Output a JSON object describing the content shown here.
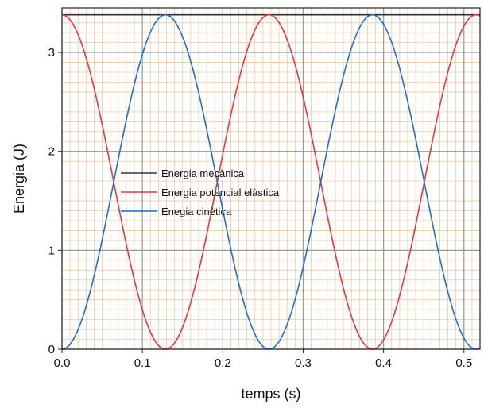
{
  "chart_data": {
    "type": "line",
    "xlabel": "temps (s)",
    "ylabel": "Energia (J)",
    "xlim": [
      0,
      0.52
    ],
    "ylim": [
      0,
      3.45
    ],
    "x_ticks": [
      0.0,
      0.1,
      0.2,
      0.3,
      0.4,
      0.5
    ],
    "x_tick_labels": [
      "0.0",
      "0.1",
      "0.2",
      "0.3",
      "0.4",
      "0.5"
    ],
    "y_ticks": [
      0,
      1,
      2,
      3
    ],
    "y_tick_labels": [
      "0",
      "1",
      "2",
      "3"
    ],
    "grid": true,
    "legend_position": "center-left",
    "period_energy_s": 0.2575,
    "amplitude_J": 3.38,
    "series": [
      {
        "name": "Energia mecànica",
        "color": "#333333",
        "x": [
          0.0,
          0.52
        ],
        "y": [
          3.38,
          3.38
        ]
      },
      {
        "name": "Energia potencial elàstica",
        "color": "#e8373f",
        "x": [
          0.0,
          0.04,
          0.08,
          0.12875,
          0.18,
          0.22,
          0.2575,
          0.3,
          0.34,
          0.38625,
          0.43,
          0.47,
          0.515
        ],
        "y": [
          3.38,
          2.46,
          0.75,
          0.0,
          0.52,
          2.15,
          3.38,
          2.36,
          0.64,
          0.0,
          0.67,
          2.39,
          3.38
        ]
      },
      {
        "name": "Enegia cinètica",
        "color": "#1f6fd0",
        "x": [
          0.0,
          0.04,
          0.08,
          0.12875,
          0.18,
          0.22,
          0.2575,
          0.3,
          0.34,
          0.38625,
          0.43,
          0.47,
          0.515
        ],
        "y": [
          0.0,
          0.92,
          2.63,
          3.38,
          2.86,
          1.23,
          0.0,
          1.02,
          2.74,
          3.38,
          2.71,
          0.99,
          0.0
        ]
      }
    ]
  }
}
